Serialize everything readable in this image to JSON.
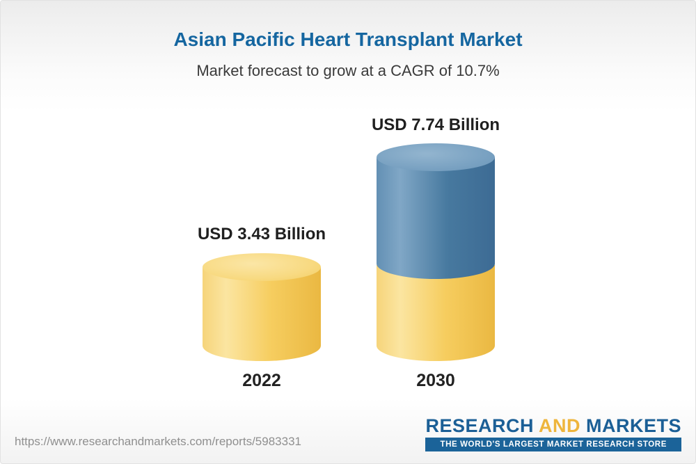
{
  "header": {
    "title": "Asian Pacific Heart Transplant Market",
    "subtitle": "Market forecast to grow at a CAGR of 10.7%"
  },
  "chart_data": {
    "type": "bar",
    "categories": [
      "2022",
      "2030"
    ],
    "values": [
      3.43,
      7.74
    ],
    "unit": "USD Billion",
    "value_labels": [
      "USD 3.43 Billion",
      "USD 7.74 Billion"
    ],
    "title": "Asian Pacific Heart Transplant Market",
    "subtitle": "Market forecast to grow at a CAGR of 10.7%",
    "cagr": "10.7%",
    "legend_position": "none",
    "grid": false,
    "colors": {
      "base_segment": "#f6cd5f",
      "growth_segment": "#47799f"
    }
  },
  "footer": {
    "url": "https://www.researchandmarkets.com/reports/5983331",
    "logo": {
      "research": "RESEARCH",
      "and": "AND",
      "markets": "MARKETS",
      "tagline": "THE WORLD'S LARGEST MARKET RESEARCH STORE"
    }
  }
}
